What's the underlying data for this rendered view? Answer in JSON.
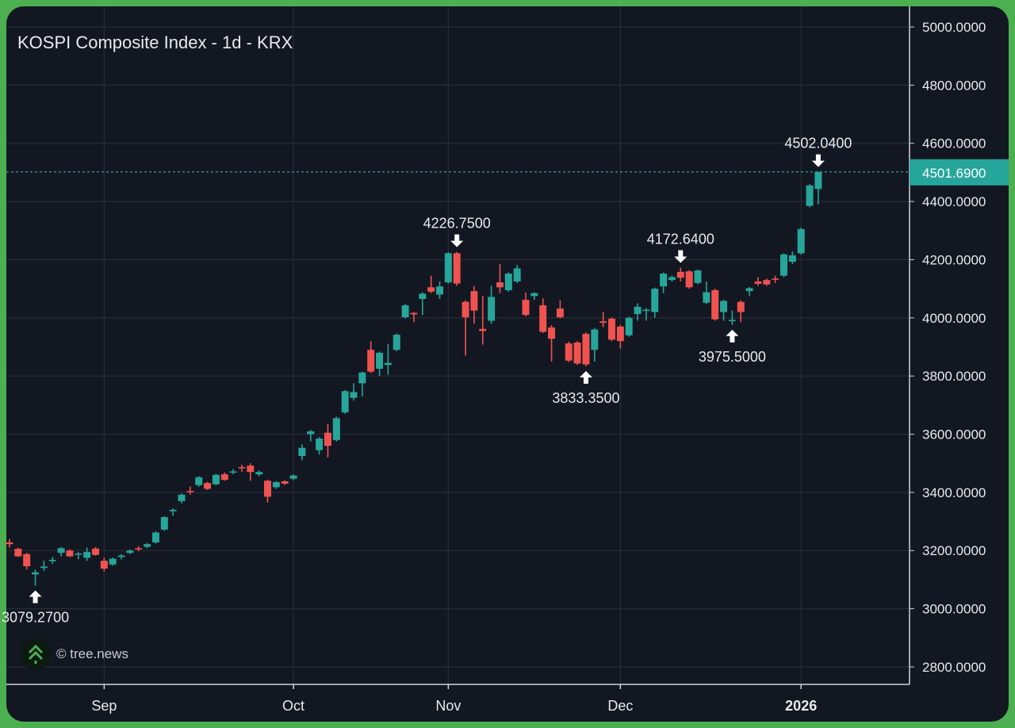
{
  "title": "KOSPI Composite Index - 1d - KRX",
  "watermark": "© tree.news",
  "colors": {
    "up": "#26a69a",
    "down": "#ef5350",
    "background": "#131722",
    "grid": "#262b36",
    "frame": "#4caf50",
    "text": "#e8eaed"
  },
  "chart_data": {
    "type": "candlestick",
    "title": "KOSPI Composite Index - 1d - KRX",
    "ylim": [
      2750,
      5060
    ],
    "y_ticks": [
      {
        "value": 5000,
        "label": "5000.0000"
      },
      {
        "value": 4800,
        "label": "4800.0000"
      },
      {
        "value": 4600,
        "label": "4600.0000"
      },
      {
        "value": 4400,
        "label": "4400.0000"
      },
      {
        "value": 4200,
        "label": "4200.0000"
      },
      {
        "value": 4000,
        "label": "4000.0000"
      },
      {
        "value": 3800,
        "label": "3800.0000"
      },
      {
        "value": 3600,
        "label": "3600.0000"
      },
      {
        "value": 3400,
        "label": "3400.0000"
      },
      {
        "value": 3200,
        "label": "3200.0000"
      },
      {
        "value": 3000,
        "label": "3000.0000"
      },
      {
        "value": 2800,
        "label": "2800.0000"
      }
    ],
    "x_ticks": [
      {
        "index": 11,
        "label": "Sep",
        "bold": false
      },
      {
        "index": 33,
        "label": "Oct",
        "bold": false
      },
      {
        "index": 51,
        "label": "Nov",
        "bold": false
      },
      {
        "index": 71,
        "label": "Dec",
        "bold": false
      },
      {
        "index": 92,
        "label": "2026",
        "bold": true
      }
    ],
    "last_price": {
      "value": 4501.69,
      "label": "4501.6900"
    },
    "annotations": [
      {
        "index": 3,
        "value": 3079.27,
        "label": "3079.2700",
        "type": "low"
      },
      {
        "index": 52,
        "value": 4226.75,
        "label": "4226.7500",
        "type": "high"
      },
      {
        "index": 67,
        "value": 3833.35,
        "label": "3833.3500",
        "type": "low"
      },
      {
        "index": 78,
        "value": 4172.64,
        "label": "4172.6400",
        "type": "high"
      },
      {
        "index": 84,
        "value": 3975.5,
        "label": "3975.5000",
        "type": "low"
      },
      {
        "index": 94,
        "value": 4502.04,
        "label": "4502.0400",
        "type": "high"
      }
    ],
    "ohlc_fields": [
      "open",
      "high",
      "low",
      "close"
    ],
    "candles": [
      [
        3228,
        3240,
        3210,
        3222
      ],
      [
        3206,
        3210,
        3178,
        3180
      ],
      [
        3188,
        3192,
        3135,
        3146
      ],
      [
        3118,
        3135,
        3079.27,
        3125
      ],
      [
        3140,
        3165,
        3130,
        3145
      ],
      [
        3165,
        3178,
        3155,
        3168
      ],
      [
        3192,
        3212,
        3180,
        3208
      ],
      [
        3200,
        3204,
        3178,
        3180
      ],
      [
        3188,
        3195,
        3170,
        3190
      ],
      [
        3175,
        3210,
        3165,
        3195
      ],
      [
        3207,
        3212,
        3182,
        3185
      ],
      [
        3165,
        3175,
        3128,
        3138
      ],
      [
        3152,
        3176,
        3148,
        3172
      ],
      [
        3178,
        3188,
        3170,
        3183
      ],
      [
        3192,
        3204,
        3188,
        3200
      ],
      [
        3208,
        3215,
        3198,
        3205
      ],
      [
        3213,
        3226,
        3208,
        3222
      ],
      [
        3228,
        3266,
        3224,
        3262
      ],
      [
        3272,
        3318,
        3268,
        3315
      ],
      [
        3335,
        3345,
        3320,
        3340
      ],
      [
        3370,
        3396,
        3362,
        3392
      ],
      [
        3405,
        3420,
        3392,
        3403
      ],
      [
        3425,
        3456,
        3420,
        3452
      ],
      [
        3432,
        3436,
        3408,
        3412
      ],
      [
        3428,
        3464,
        3424,
        3460
      ],
      [
        3462,
        3468,
        3440,
        3443
      ],
      [
        3468,
        3480,
        3462,
        3472
      ],
      [
        3487,
        3495,
        3470,
        3484
      ],
      [
        3492,
        3500,
        3440,
        3470
      ],
      [
        3462,
        3475,
        3455,
        3470
      ],
      [
        3440,
        3444,
        3365,
        3385
      ],
      [
        3418,
        3438,
        3412,
        3435
      ],
      [
        3438,
        3442,
        3425,
        3430
      ],
      [
        3447,
        3462,
        3442,
        3458
      ],
      [
        3525,
        3565,
        3510,
        3553
      ],
      [
        3600,
        3615,
        3575,
        3610
      ],
      [
        3545,
        3590,
        3530,
        3585
      ],
      [
        3605,
        3635,
        3520,
        3560
      ],
      [
        3580,
        3660,
        3575,
        3655
      ],
      [
        3675,
        3752,
        3670,
        3748
      ],
      [
        3725,
        3775,
        3715,
        3745
      ],
      [
        3775,
        3815,
        3730,
        3812
      ],
      [
        3890,
        3920,
        3810,
        3815
      ],
      [
        3825,
        3884,
        3800,
        3880
      ],
      [
        3838,
        3910,
        3805,
        3845
      ],
      [
        3890,
        3946,
        3885,
        3942
      ],
      [
        4002,
        4048,
        3998,
        4043
      ],
      [
        4017,
        4020,
        3985,
        4012
      ],
      [
        4065,
        4088,
        4010,
        4083
      ],
      [
        4105,
        4145,
        4085,
        4090
      ],
      [
        4080,
        4125,
        4065,
        4108
      ],
      [
        4122,
        4226,
        4118,
        4222
      ],
      [
        4222,
        4226.75,
        4110,
        4118
      ],
      [
        4055,
        4060,
        3870,
        4002
      ],
      [
        4092,
        4110,
        3980,
        4025
      ],
      [
        3962,
        4075,
        3908,
        3955
      ],
      [
        3990,
        4110,
        3980,
        4072
      ],
      [
        4122,
        4185,
        4085,
        4105
      ],
      [
        4095,
        4156,
        4090,
        4152
      ],
      [
        4125,
        4182,
        4120,
        4170
      ],
      [
        4062,
        4087,
        4005,
        4010
      ],
      [
        4075,
        4088,
        4062,
        4085
      ],
      [
        4043,
        4067,
        3948,
        3952
      ],
      [
        3967,
        3975,
        3850,
        3928
      ],
      [
        4032,
        4060,
        3998,
        4002
      ],
      [
        3912,
        3918,
        3848,
        3853
      ],
      [
        3915,
        3920,
        3838,
        3843
      ],
      [
        3945,
        3950,
        3833.35,
        3840
      ],
      [
        3890,
        3965,
        3850,
        3960
      ],
      [
        3988,
        4020,
        3968,
        3983
      ],
      [
        3997,
        4002,
        3920,
        3925
      ],
      [
        3970,
        3975,
        3895,
        3920
      ],
      [
        3940,
        4004,
        3935,
        4000
      ],
      [
        4013,
        4050,
        3990,
        4038
      ],
      [
        4025,
        4034,
        3990,
        4028
      ],
      [
        4020,
        4104,
        4000,
        4100
      ],
      [
        4108,
        4156,
        4085,
        4152
      ],
      [
        4130,
        4145,
        4125,
        4140
      ],
      [
        4158,
        4172.64,
        4125,
        4138
      ],
      [
        4160,
        4164,
        4100,
        4105
      ],
      [
        4120,
        4166,
        4116,
        4163
      ],
      [
        4052,
        4125,
        4048,
        4088
      ],
      [
        4095,
        4100,
        3990,
        3995
      ],
      [
        4020,
        4062,
        3990,
        4058
      ],
      [
        3990,
        4025,
        3975.5,
        3993
      ],
      [
        4055,
        4060,
        3985,
        4020
      ],
      [
        4092,
        4106,
        4075,
        4102
      ],
      [
        4125,
        4140,
        4110,
        4117
      ],
      [
        4130,
        4135,
        4110,
        4115
      ],
      [
        4135,
        4145,
        4120,
        4132
      ],
      [
        4145,
        4222,
        4140,
        4218
      ],
      [
        4193,
        4228,
        4185,
        4215
      ],
      [
        4222,
        4310,
        4218,
        4305
      ],
      [
        4385,
        4460,
        4380,
        4455
      ],
      [
        4443,
        4502.04,
        4390,
        4501.69
      ]
    ]
  }
}
